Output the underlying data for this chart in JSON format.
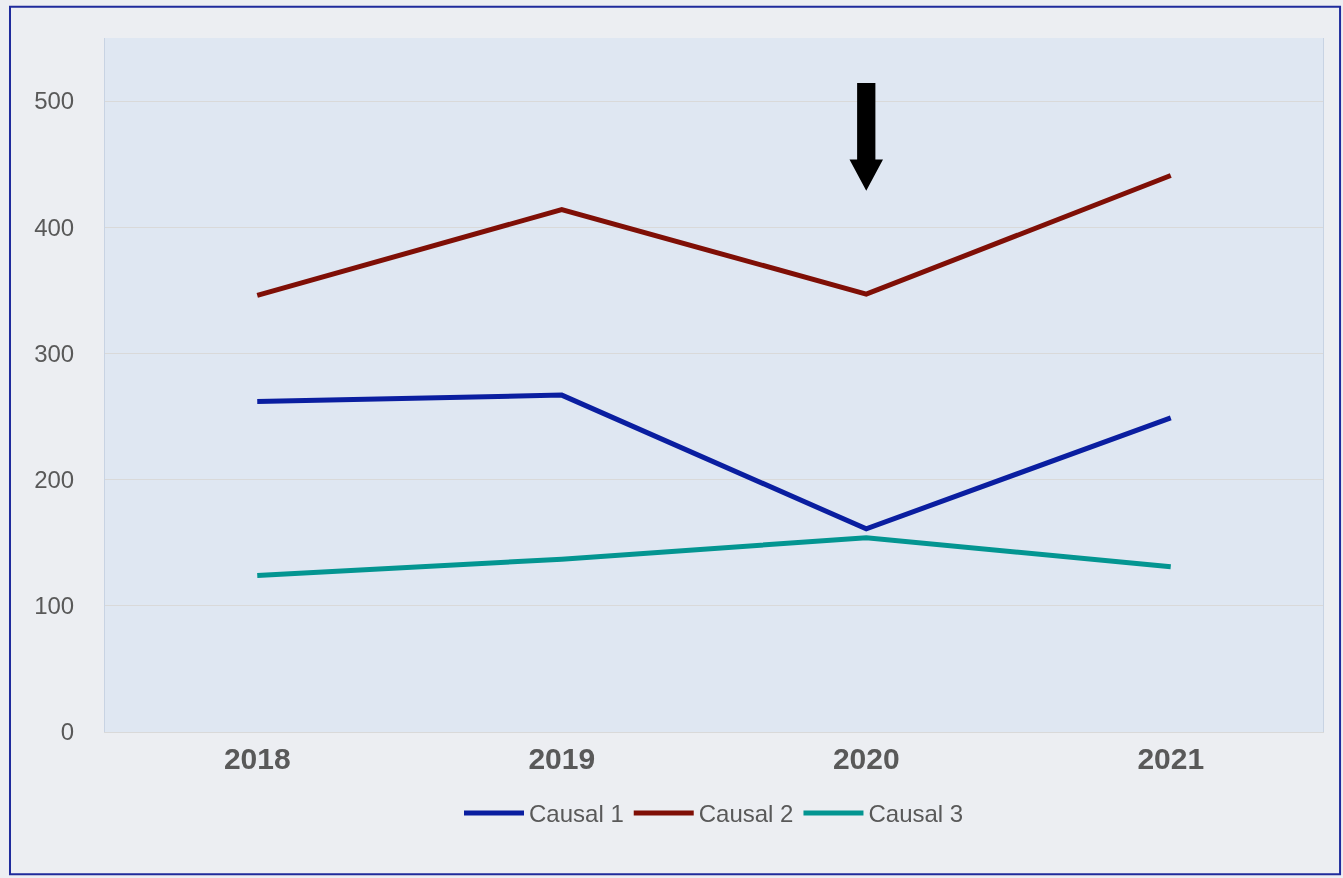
{
  "chart_data": {
    "type": "line",
    "categories": [
      "2018",
      "2019",
      "2020",
      "2021"
    ],
    "series": [
      {
        "name": "Causal 1",
        "color": "#0a1ea0",
        "values": [
          262,
          267,
          161,
          249
        ]
      },
      {
        "name": "Causal 2",
        "color": "#7f0f06",
        "values": [
          346,
          414,
          347,
          441
        ]
      },
      {
        "name": "Causal 3",
        "color": "#039591",
        "values": [
          124,
          137,
          154,
          131
        ]
      }
    ],
    "ylim": [
      0,
      550
    ],
    "yticks": [
      0,
      100,
      200,
      300,
      400,
      500
    ],
    "grid": "y",
    "legend": "bottom",
    "marker": "none",
    "line_style": "solid"
  }
}
